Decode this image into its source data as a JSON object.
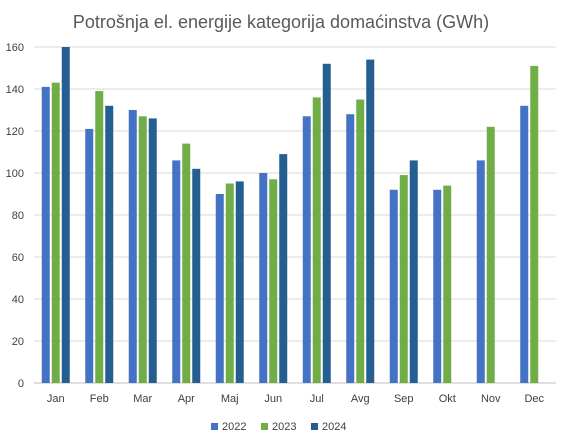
{
  "chart_data": {
    "type": "bar",
    "title": "Potrošnja el. energije kategorija domaćinstva (GWh)",
    "xlabel": "",
    "ylabel": "",
    "ylim": [
      0,
      160
    ],
    "yticks": [
      0,
      20,
      40,
      60,
      80,
      100,
      120,
      140,
      160
    ],
    "grid": true,
    "legend": "bottom",
    "categories": [
      "Jan",
      "Feb",
      "Mar",
      "Apr",
      "Maj",
      "Jun",
      "Jul",
      "Avg",
      "Sep",
      "Okt",
      "Nov",
      "Dec"
    ],
    "series": [
      {
        "name": "2022",
        "color": "#4472c4",
        "values": [
          141,
          121,
          130,
          106,
          90,
          100,
          127,
          128,
          92,
          92,
          106,
          132
        ]
      },
      {
        "name": "2023",
        "color": "#70ad47",
        "values": [
          143,
          139,
          127,
          114,
          95,
          97,
          136,
          135,
          99,
          94,
          122,
          151
        ]
      },
      {
        "name": "2024",
        "color": "#255e91",
        "values": [
          160,
          132,
          126,
          102,
          96,
          109,
          152,
          154,
          106,
          null,
          null,
          null
        ]
      }
    ]
  }
}
